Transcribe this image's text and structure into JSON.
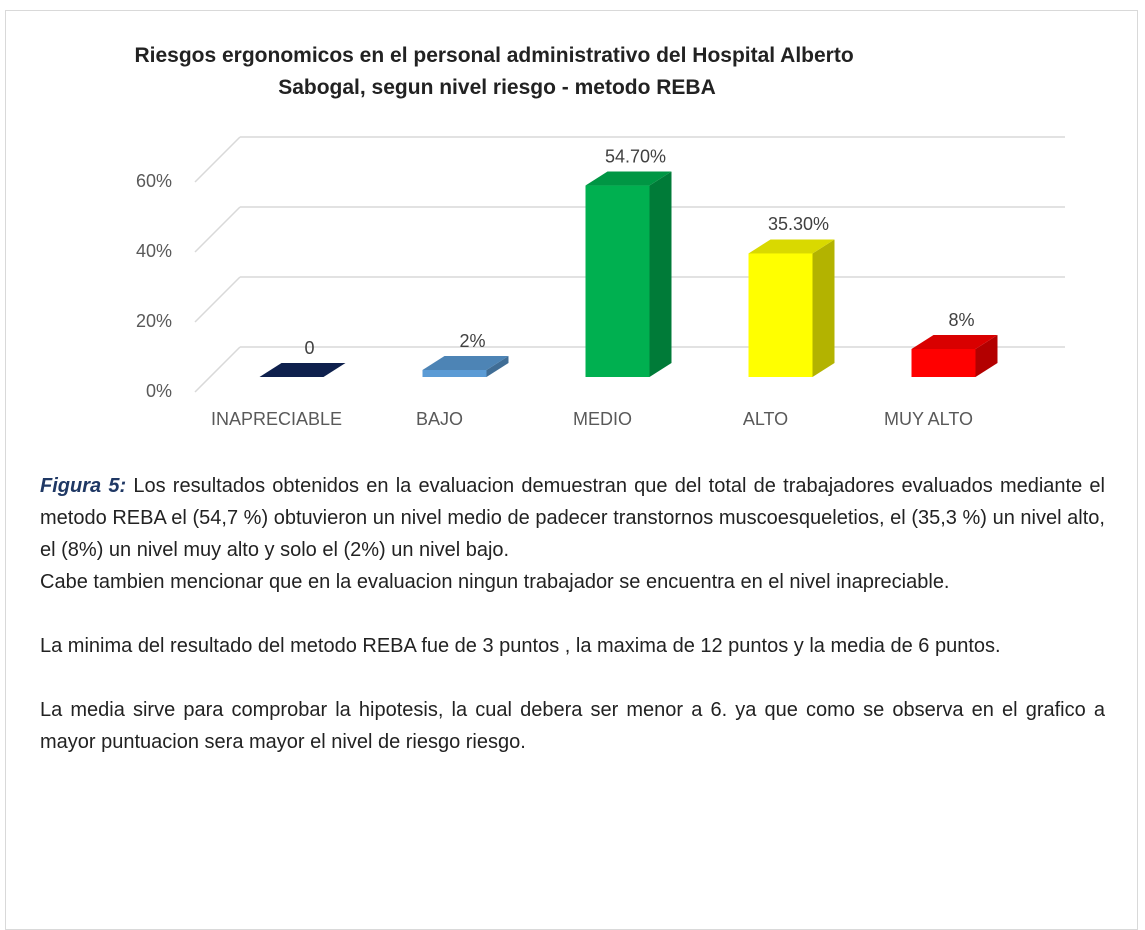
{
  "chart_data": {
    "type": "bar3d",
    "title": "Riesgos ergonomicos en el personal administrativo del Hospital Alberto Sabogal, segun nivel riesgo  - metodo REBA",
    "categories": [
      "INAPRECIABLE",
      "BAJO",
      "MEDIO",
      "ALTO",
      "MUY ALTO"
    ],
    "values": [
      0,
      2,
      54.7,
      35.3,
      8
    ],
    "value_labels": [
      "0",
      "2%",
      "54.70%",
      "35.30%",
      "8%"
    ],
    "colors": [
      "#10265a",
      "#5b9bd5",
      "#00b050",
      "#ffff00",
      "#ff0000"
    ],
    "ylim": [
      0,
      60
    ],
    "yticks": [
      {
        "value": 0,
        "label": "0%"
      },
      {
        "value": 20,
        "label": "20%"
      },
      {
        "value": 40,
        "label": "40%"
      },
      {
        "value": 60,
        "label": "60%"
      }
    ],
    "grid": true
  },
  "caption": {
    "label": "Figura 5:",
    "text": " Los resultados obtenidos en la evaluacion demuestran que del total de trabajadores evaluados mediante el metodo REBA el (54,7 %) obtuvieron un nivel medio de padecer transtornos muscoesqueletios, el (35,3 %) un nivel alto, el (8%) un nivel muy alto y solo el (2%) un nivel bajo."
  },
  "paragraphs": [
    "Cabe tambien mencionar que en la evaluacion ningun trabajador se encuentra en el nivel inapreciable.",
    "La minima del resultado del metodo REBA fue de 3 puntos , la maxima de 12 puntos y la media de 6 puntos.",
    "La media sirve para comprobar la hipotesis, la cual debera ser menor a 6. ya que como se observa en el grafico a mayor puntuacion sera mayor el nivel de riesgo riesgo."
  ]
}
